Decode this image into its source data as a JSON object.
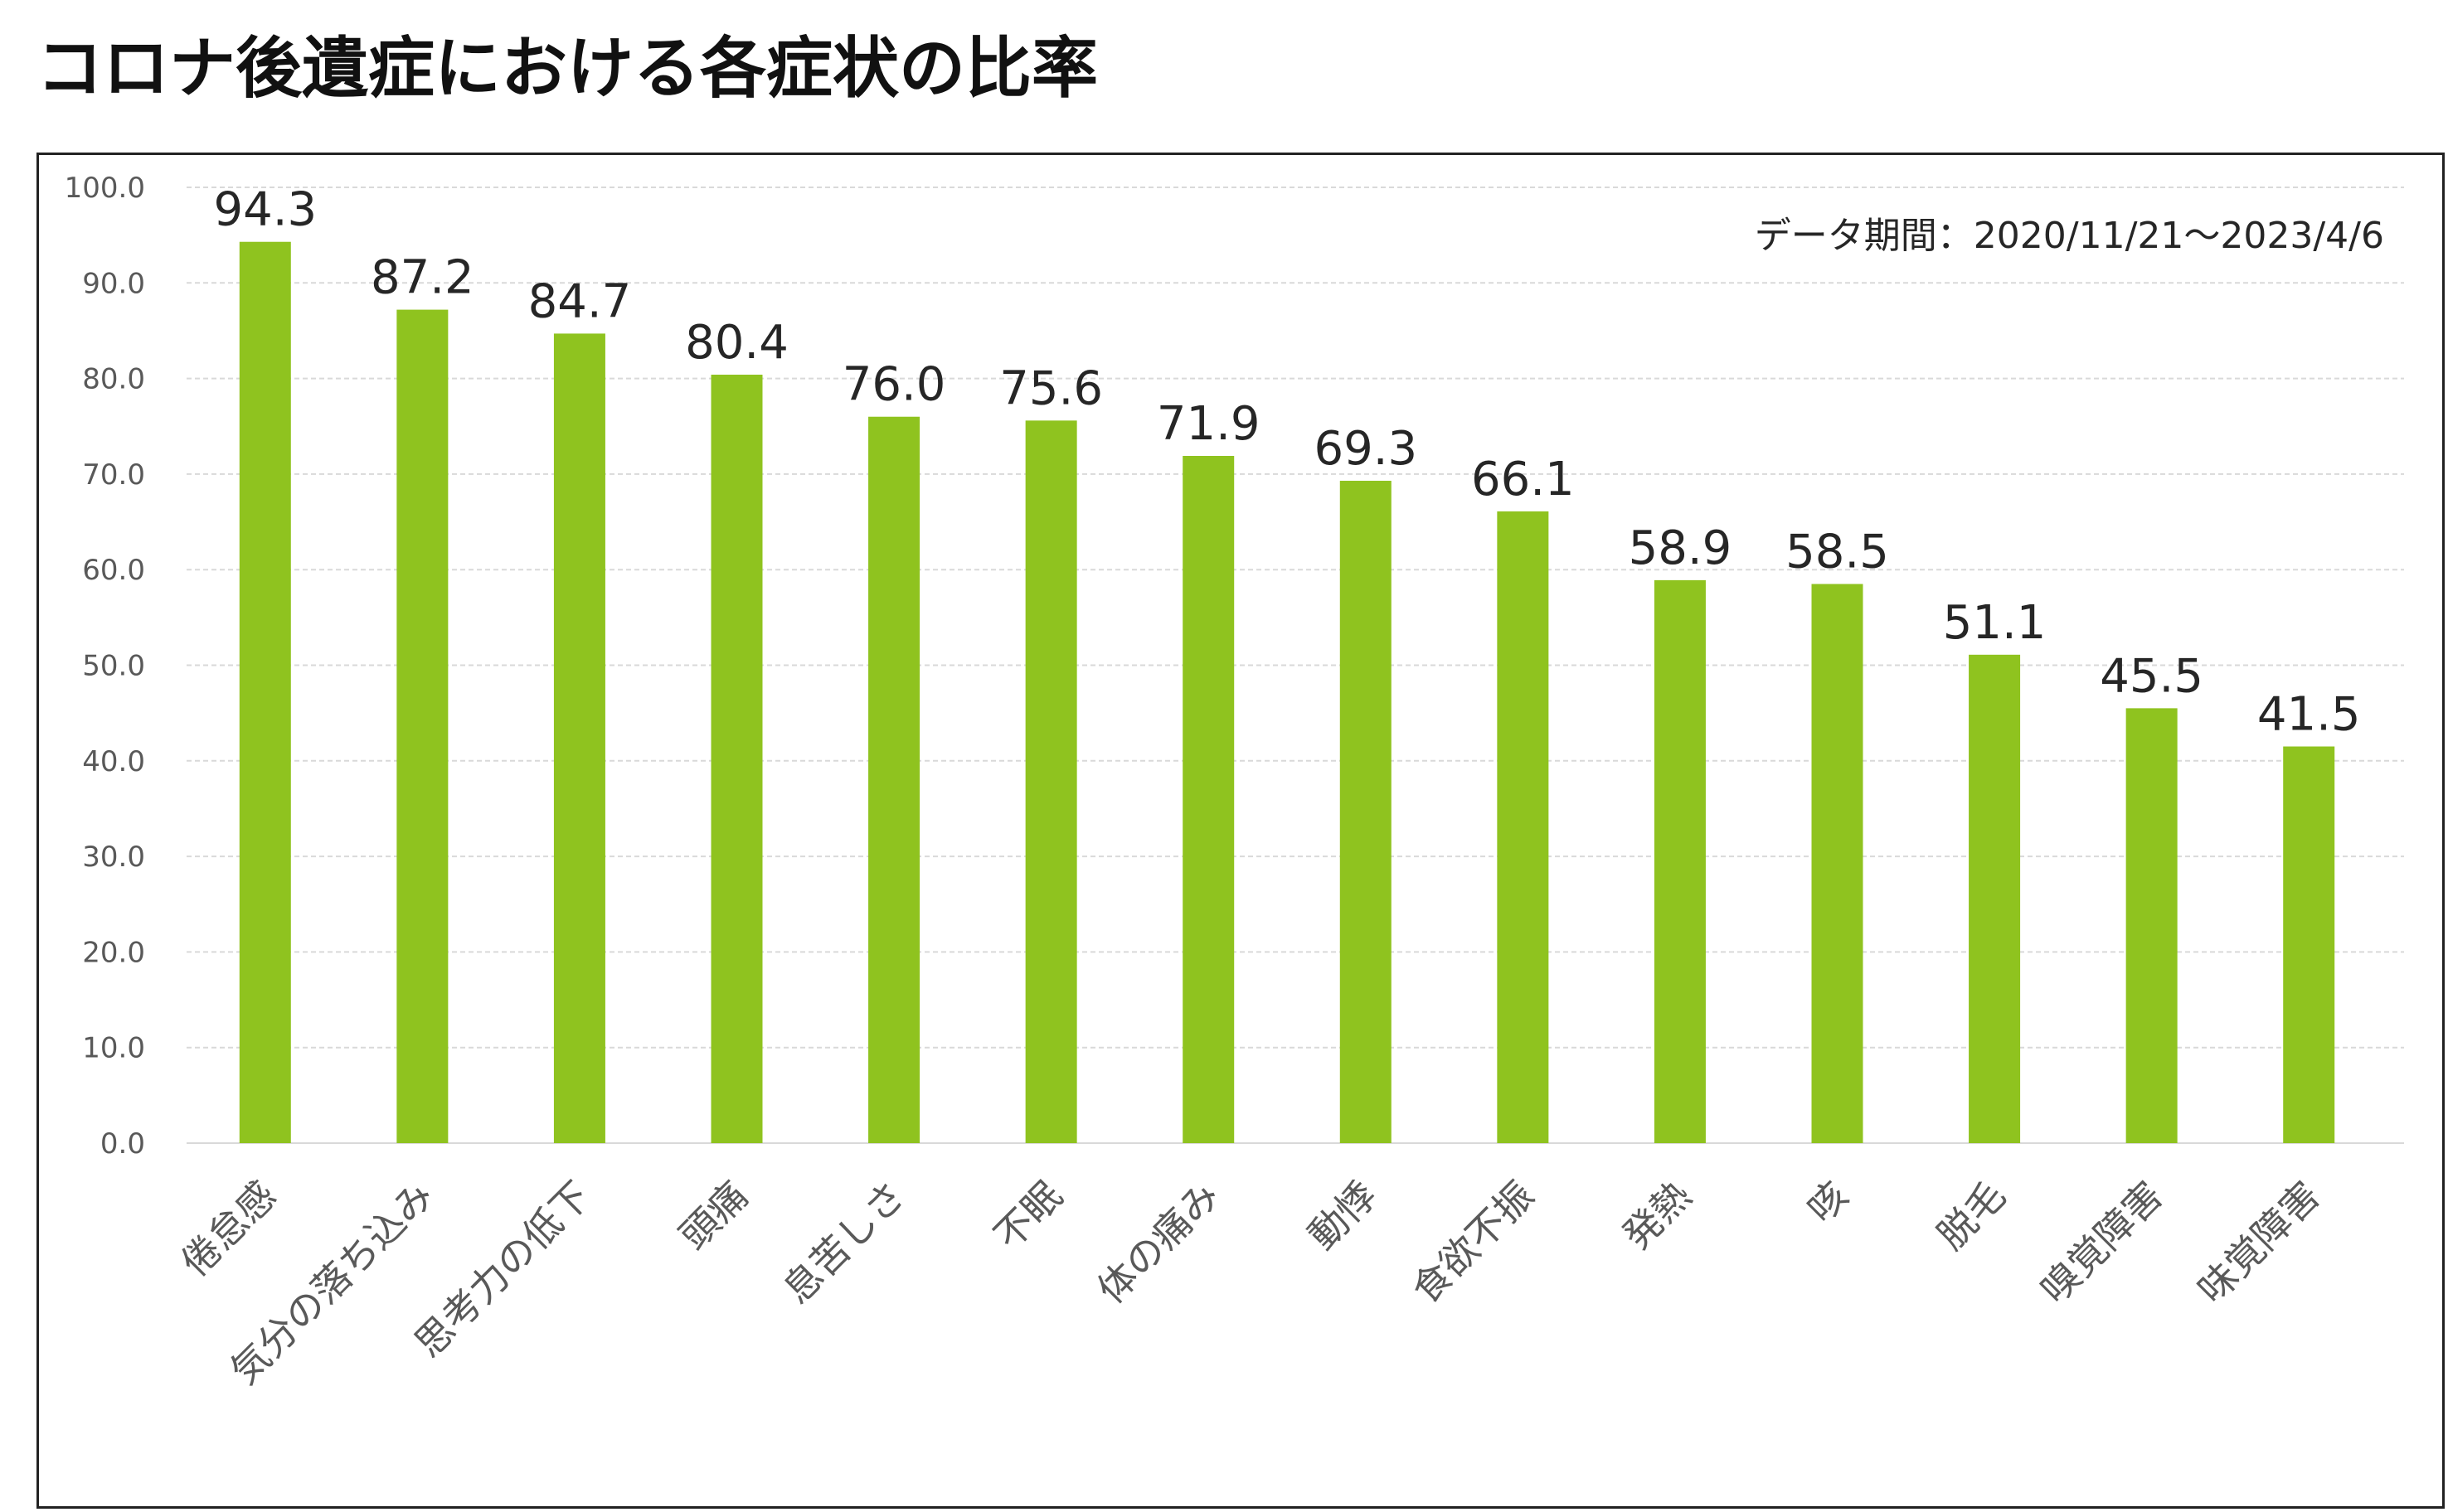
{
  "title": "コロナ後遺症における各症状の比率",
  "chart_data": {
    "type": "bar",
    "title": "コロナ後遺症における各症状の比率",
    "annotation": "データ期間：2020/11/21～2023/4/6",
    "categories": [
      "倦怠感",
      "気分の落ち込み",
      "思考力の低下",
      "頭痛",
      "息苦しさ",
      "不眠",
      "体の痛み",
      "動悸",
      "食欲不振",
      "発熱",
      "咳",
      "脱毛",
      "嗅覚障害",
      "味覚障害"
    ],
    "values": [
      94.3,
      87.2,
      84.7,
      80.4,
      76.0,
      75.6,
      71.9,
      69.3,
      66.1,
      58.9,
      58.5,
      51.1,
      45.5,
      41.5
    ],
    "value_labels": [
      "94.3",
      "87.2",
      "84.7",
      "80.4",
      "76.0",
      "75.6",
      "71.9",
      "69.3",
      "66.1",
      "58.9",
      "58.5",
      "51.1",
      "45.5",
      "41.5"
    ],
    "yticks": [
      "0.0",
      "10.0",
      "20.0",
      "30.0",
      "40.0",
      "50.0",
      "60.0",
      "70.0",
      "80.0",
      "90.0",
      "100.0"
    ],
    "ylim": [
      0,
      100
    ],
    "xlabel": "",
    "ylabel": "",
    "grid": true,
    "legend": "none",
    "bar_color": "#8fc31f",
    "grid_color": "#d9d9d9",
    "tick_label_color": "#595959",
    "value_label_color": "#262626",
    "category_label_color": "#595959"
  }
}
